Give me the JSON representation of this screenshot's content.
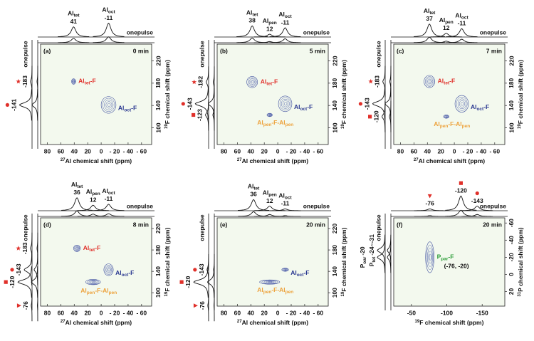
{
  "chart_data": [
    {
      "type": "contour",
      "label": "(a)",
      "time": "0 min",
      "x_label": {
        "sup": "27",
        "text": "Al chemical shift (ppm)"
      },
      "y_label": {
        "sup": "19",
        "text": "F chemical shift (ppm)"
      },
      "xlim": [
        90,
        -75
      ],
      "xticks": [
        80,
        60,
        40,
        20,
        0,
        {
          "value": -20,
          "label": "- 20"
        },
        {
          "value": -40,
          "label": "- 40"
        },
        {
          "value": -60,
          "label": "- 60"
        }
      ],
      "ylim": [
        -250,
        -70
      ],
      "yticks": [
        {
          "value": -220,
          "label": "220"
        },
        {
          "value": -180,
          "label": "180"
        },
        {
          "value": -140,
          "label": "140"
        },
        {
          "value": -100,
          "label": "100"
        }
      ],
      "trace_labels": [
        "onepulse",
        "onepulse"
      ],
      "top_peaks": [
        {
          "name": "Al",
          "sub": "tet",
          "x": 41,
          "intensity": 0.55
        },
        {
          "name": "Al",
          "sub": "oct",
          "x": -11,
          "intensity": 0.75
        }
      ],
      "left_peaks": [
        {
          "y": -183,
          "marker": "star",
          "intensity": 0.1
        },
        {
          "y": -141,
          "marker": "circle",
          "intensity": 0.8
        }
      ],
      "cross_peaks": [
        {
          "label": [
            {
              "text": "Al"
            },
            {
              "sub": "tet"
            },
            {
              "text": "-F"
            }
          ],
          "color": "#e0302a",
          "x": 41,
          "y": -183,
          "width": 6,
          "height": 10
        },
        {
          "label": [
            {
              "text": "Al"
            },
            {
              "sub": "oct"
            },
            {
              "text": "-F"
            }
          ],
          "color": "#27358f",
          "x": -11,
          "y": -141,
          "width": 22,
          "height": 30
        }
      ]
    },
    {
      "type": "contour",
      "label": "(b)",
      "time": "5 min",
      "x_label": {
        "sup": "27",
        "text": "Al chemical shift (ppm)"
      },
      "y_label": {
        "sup": "19",
        "text": "F chemical shift (ppm)"
      },
      "xlim": [
        90,
        -75
      ],
      "xticks": [
        80,
        60,
        40,
        20,
        0,
        {
          "value": -20,
          "label": "- 20"
        },
        {
          "value": -40,
          "label": "- 40"
        },
        {
          "value": -60,
          "label": "- 60"
        }
      ],
      "ylim": [
        -250,
        -70
      ],
      "yticks": [
        {
          "value": -220,
          "label": "220"
        },
        {
          "value": -180,
          "label": "180"
        },
        {
          "value": -140,
          "label": "140"
        },
        {
          "value": -100,
          "label": "100"
        }
      ],
      "trace_labels": [
        "onepulse",
        "onepulse"
      ],
      "top_peaks": [
        {
          "name": "Al",
          "sub": "tet",
          "x": 38,
          "intensity": 0.6
        },
        {
          "name": "Al",
          "sub": "pen",
          "x": 12,
          "intensity": 0.15
        },
        {
          "name": "Al",
          "sub": "oct",
          "x": -11,
          "intensity": 0.5
        }
      ],
      "left_peaks": [
        {
          "y": -182,
          "marker": "star",
          "intensity": 0.15
        },
        {
          "y": -143,
          "marker": "circle",
          "intensity": 0.85
        },
        {
          "y": -123,
          "marker": "square",
          "intensity": 0.2
        }
      ],
      "cross_peaks": [
        {
          "label": [
            {
              "text": "Al"
            },
            {
              "sub": "tet"
            },
            {
              "text": "-F"
            }
          ],
          "color": "#e0302a",
          "x": 38,
          "y": -182,
          "width": 16,
          "height": 20
        },
        {
          "label": [
            {
              "text": "Al"
            },
            {
              "sub": "oct"
            },
            {
              "text": "-F"
            }
          ],
          "color": "#27358f",
          "x": -11,
          "y": -143,
          "width": 20,
          "height": 28
        },
        {
          "label": [
            {
              "text": "Al"
            },
            {
              "sub": "pen"
            },
            {
              "text": "-F-Al"
            },
            {
              "sub": "pen"
            }
          ],
          "color": "#eda13a",
          "x": 12,
          "y": -123,
          "width": 8,
          "height": 6
        }
      ]
    },
    {
      "type": "contour",
      "label": "(c)",
      "time": "7 min",
      "x_label": {
        "sup": "27",
        "text": "Al chemical shift (ppm)"
      },
      "y_label": {
        "sup": "19",
        "text": "F chemical shift (ppm)"
      },
      "xlim": [
        90,
        -75
      ],
      "xticks": [
        80,
        60,
        40,
        20,
        0,
        {
          "value": -20,
          "label": "- 20"
        },
        {
          "value": -40,
          "label": "- 40"
        },
        {
          "value": -60,
          "label": "- 60"
        }
      ],
      "ylim": [
        -250,
        -70
      ],
      "yticks": [
        {
          "value": -220,
          "label": "220"
        },
        {
          "value": -180,
          "label": "180"
        },
        {
          "value": -140,
          "label": "140"
        },
        {
          "value": -100,
          "label": "100"
        }
      ],
      "trace_labels": [
        "onepulse",
        "onepulse"
      ],
      "top_peaks": [
        {
          "name": "Al",
          "sub": "tet",
          "x": 37,
          "intensity": 0.7
        },
        {
          "name": "Al",
          "sub": "pen",
          "x": 12,
          "intensity": 0.2
        },
        {
          "name": "Al",
          "sub": "oct",
          "x": -11,
          "intensity": 0.45
        }
      ],
      "left_peaks": [
        {
          "y": -183,
          "marker": "star",
          "intensity": 0.15
        },
        {
          "y": -143,
          "marker": "circle",
          "intensity": 0.8
        },
        {
          "y": -120,
          "marker": "square",
          "intensity": 0.2
        }
      ],
      "cross_peaks": [
        {
          "label": [
            {
              "text": "Al"
            },
            {
              "sub": "tet"
            },
            {
              "text": "-F"
            }
          ],
          "color": "#e0302a",
          "x": 37,
          "y": -183,
          "width": 16,
          "height": 22
        },
        {
          "label": [
            {
              "text": "Al"
            },
            {
              "sub": "oct"
            },
            {
              "text": "-F"
            }
          ],
          "color": "#27358f",
          "x": -11,
          "y": -143,
          "width": 20,
          "height": 30
        },
        {
          "label": [
            {
              "text": "Al"
            },
            {
              "sub": "pen"
            },
            {
              "text": "-F-Al"
            },
            {
              "sub": "pen"
            }
          ],
          "color": "#eda13a",
          "x": 12,
          "y": -120,
          "width": 8,
          "height": 6
        }
      ]
    },
    {
      "type": "contour",
      "label": "(d)",
      "time": "8 min",
      "x_label": {
        "sup": "27",
        "text": "Al chemical shift (ppm)"
      },
      "y_label": {
        "sup": "19",
        "text": "F chemical shift (ppm)"
      },
      "xlim": [
        90,
        -75
      ],
      "xticks": [
        80,
        60,
        40,
        20,
        0,
        {
          "value": -20,
          "label": "- 20"
        },
        {
          "value": -40,
          "label": "- 40"
        },
        {
          "value": -60,
          "label": "- 60"
        }
      ],
      "ylim": [
        -240,
        -75
      ],
      "yticks": [
        {
          "value": -220,
          "label": "220"
        },
        {
          "value": -180,
          "label": "180"
        },
        {
          "value": -140,
          "label": "140"
        },
        {
          "value": -100,
          "label": "100"
        }
      ],
      "trace_labels": [
        "onepulse",
        "onepulse"
      ],
      "top_peaks": [
        {
          "name": "Al",
          "sub": "tet",
          "x": 36,
          "intensity": 0.7
        },
        {
          "name": "Al",
          "sub": "pen",
          "x": 12,
          "intensity": 0.3
        },
        {
          "name": "Al",
          "sub": "oct",
          "x": -11,
          "intensity": 0.35
        }
      ],
      "left_peaks": [
        {
          "y": -183,
          "marker": "star",
          "intensity": 0.1
        },
        {
          "y": -143,
          "marker": "circle",
          "intensity": 0.5
        },
        {
          "y": -120,
          "marker": "square",
          "intensity": 0.9
        },
        {
          "y": -76,
          "marker": "triangle",
          "intensity": 0.05
        }
      ],
      "cross_peaks": [
        {
          "label": [
            {
              "text": "Al"
            },
            {
              "sub": "tet"
            },
            {
              "text": "-F"
            }
          ],
          "color": "#e0302a",
          "x": 36,
          "y": -183,
          "width": 10,
          "height": 12
        },
        {
          "label": [
            {
              "text": "Al"
            },
            {
              "sub": "oct"
            },
            {
              "text": "-F"
            }
          ],
          "color": "#27358f",
          "x": -11,
          "y": -143,
          "width": 14,
          "height": 22
        },
        {
          "label": [
            {
              "text": "Al"
            },
            {
              "sub": "pen"
            },
            {
              "text": "-F-Al"
            },
            {
              "sub": "pen"
            }
          ],
          "color": "#eda13a",
          "x": 12,
          "y": -120,
          "width": 22,
          "height": 10
        }
      ]
    },
    {
      "type": "contour",
      "label": "(e)",
      "time": "20 min",
      "x_label": {
        "sup": "27",
        "text": "Al chemical shift (ppm)"
      },
      "y_label": {
        "sup": "19",
        "text": "F chemical shift (ppm)"
      },
      "xlim": [
        90,
        -75
      ],
      "xticks": [
        80,
        60,
        40,
        20,
        0,
        {
          "value": -20,
          "label": "- 20"
        },
        {
          "value": -40,
          "label": "- 40"
        },
        {
          "value": -60,
          "label": "- 60"
        }
      ],
      "ylim": [
        -240,
        -75
      ],
      "yticks": [
        {
          "value": -220,
          "label": "220"
        },
        {
          "value": -180,
          "label": "180"
        },
        {
          "value": -140,
          "label": "140"
        },
        {
          "value": -100,
          "label": "100"
        }
      ],
      "trace_labels": [
        "onepulse",
        "onepulse"
      ],
      "top_peaks": [
        {
          "name": "Al",
          "sub": "tet",
          "x": 36,
          "intensity": 0.6
        },
        {
          "name": "Al",
          "sub": "pen",
          "x": 12,
          "intensity": 0.25
        },
        {
          "name": "Al",
          "sub": "oct",
          "x": -11,
          "intensity": 0.1
        }
      ],
      "left_peaks": [
        {
          "y": -143,
          "marker": "circle",
          "intensity": 0.1
        },
        {
          "y": -120,
          "marker": "square",
          "intensity": 0.95
        },
        {
          "y": -76,
          "marker": "triangle",
          "intensity": 0.05
        }
      ],
      "cross_peaks": [
        {
          "label": [
            {
              "text": "Al"
            },
            {
              "sub": "oct"
            },
            {
              "text": "-F"
            }
          ],
          "color": "#27358f",
          "x": -11,
          "y": -143,
          "width": 10,
          "height": 6
        },
        {
          "label": [
            {
              "text": "Al"
            },
            {
              "sub": "pen"
            },
            {
              "text": "-F-Al"
            },
            {
              "sub": "pen"
            }
          ],
          "color": "#eda13a",
          "x": 12,
          "y": -120,
          "width": 30,
          "height": 8
        }
      ]
    },
    {
      "type": "contour",
      "label": "(f)",
      "time": "20 min",
      "x_label": {
        "sup": "19",
        "text": "F chemical shift (ppm)"
      },
      "y_label": {
        "sup": "31",
        "text": "P chemical shift (ppm)"
      },
      "xlim": [
        -25,
        -182
      ],
      "xticks": [
        -50,
        -100,
        -150
      ],
      "ylim": [
        -66,
        37
      ],
      "yticks": [
        -60,
        -40,
        -20,
        0,
        20
      ],
      "trace_labels": [
        "onepulse",
        "onepulse"
      ],
      "top_peaks": [
        {
          "x": -76,
          "marker": "triangle",
          "intensity": 0.1
        },
        {
          "x": -120,
          "marker": "square",
          "intensity": 0.8
        },
        {
          "x": -143,
          "marker": "circle",
          "intensity": 0.25
        }
      ],
      "left_peaks": [
        {
          "name": "P",
          "sub": "tet",
          "label": "-24~-31",
          "y": -28,
          "intensity": 0.5
        },
        {
          "name": "P",
          "sub": "oar",
          "y": -20,
          "intensity": 0.5
        }
      ],
      "cross_peaks": [
        {
          "label": [
            {
              "text": "P"
            },
            {
              "sub": "par"
            },
            {
              "text": "-F"
            }
          ],
          "note": "(-76, -20)",
          "color": "#2e9e3a",
          "x": -76,
          "y": -20,
          "width": 12,
          "height": 36
        }
      ]
    }
  ]
}
